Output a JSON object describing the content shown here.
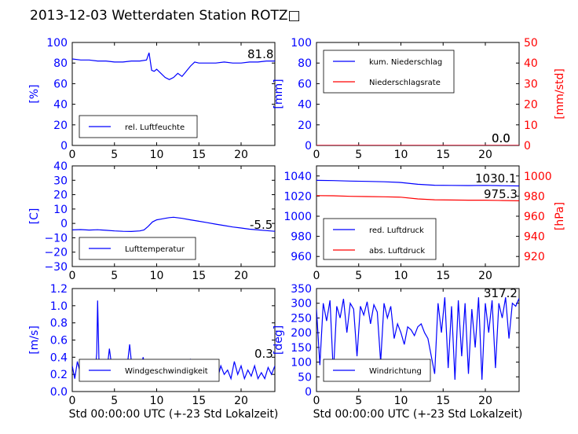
{
  "figure": {
    "title": "2013-12-03 Wetterdaten Station ROTZ□",
    "xlabel": "Std 00:00:00 UTC (+-23 Std Lokalzeit)"
  },
  "colors": {
    "left_axis": "#0000ff",
    "right_axis": "#ff0000",
    "line_primary": "#0000ff",
    "line_secondary": "#ff0000",
    "line_light": "#8080ff"
  },
  "chart_data": [
    {
      "id": "humidity",
      "type": "line",
      "ylabel": "[%]",
      "xlim": [
        0,
        24
      ],
      "ylim": [
        0,
        100
      ],
      "xticks": [
        "0",
        "5",
        "10",
        "15",
        "20"
      ],
      "yticks": [
        "0",
        "20",
        "40",
        "60",
        "80",
        "100"
      ],
      "legend": [
        "rel. Luftfeuchte"
      ],
      "legend_position": "lower-left",
      "current_labels": [
        "81.8"
      ],
      "series": [
        {
          "name": "rel. Luftfeuchte",
          "axis": "left",
          "color": "#0000ff",
          "x": [
            0,
            1,
            2,
            3,
            4,
            5,
            6,
            7,
            8,
            8.8,
            9.1,
            9.4,
            9.7,
            10,
            10.5,
            11,
            11.5,
            12,
            12.5,
            13,
            13.5,
            14,
            14.5,
            15,
            16,
            17,
            18,
            19,
            20,
            21,
            22,
            23,
            24
          ],
          "y": [
            84,
            83,
            83,
            82,
            82,
            81,
            81,
            82,
            82,
            83,
            90,
            73,
            72,
            74,
            70,
            66,
            64,
            66,
            70,
            67,
            72,
            77,
            81,
            80,
            80,
            80,
            81,
            80,
            80,
            81,
            81,
            82,
            82
          ]
        }
      ]
    },
    {
      "id": "precipitation",
      "type": "line",
      "ylabel": "[mm]",
      "ylabel_right": "[mm/std]",
      "xlim": [
        0,
        24
      ],
      "ylim": [
        0,
        100
      ],
      "ylim_right": [
        0,
        50
      ],
      "xticks": [
        "0",
        "5",
        "10",
        "15",
        "20"
      ],
      "yticks": [
        "0",
        "20",
        "40",
        "60",
        "80",
        "100"
      ],
      "yticks_right": [
        "0",
        "10",
        "20",
        "30",
        "40",
        "50"
      ],
      "legend": [
        "kum. Niederschlag",
        "Niederschlagsrate"
      ],
      "legend_position": "upper-left",
      "current_labels": [
        "0.0",
        "0.0"
      ],
      "series": [
        {
          "name": "kum. Niederschlag",
          "axis": "left",
          "color": "#0000ff",
          "x": [
            0,
            24
          ],
          "y": [
            0,
            0
          ]
        },
        {
          "name": "Niederschlagsrate",
          "axis": "right",
          "color": "#ff0000",
          "x": [
            0,
            24
          ],
          "y": [
            0,
            0
          ]
        }
      ]
    },
    {
      "id": "temperature",
      "type": "line",
      "ylabel": "[C]",
      "xlim": [
        0,
        24
      ],
      "ylim": [
        -30,
        40
      ],
      "xticks": [
        "0",
        "5",
        "10",
        "15",
        "20"
      ],
      "yticks": [
        "−30",
        "−20",
        "−10",
        "0",
        "10",
        "20",
        "30",
        "40"
      ],
      "legend": [
        "Lufttemperatur"
      ],
      "legend_position": "lower-left",
      "current_labels": [
        "-5.5"
      ],
      "series": [
        {
          "name": "Lufttemperatur",
          "axis": "left",
          "color": "#0000ff",
          "x": [
            0,
            1,
            2,
            3,
            4,
            5,
            6,
            7,
            8,
            8.5,
            9,
            9.5,
            10,
            10.5,
            11,
            11.5,
            12,
            13,
            14,
            15,
            16,
            17,
            18,
            19,
            20,
            21,
            22,
            23,
            24
          ],
          "y": [
            -4.5,
            -4.3,
            -4.6,
            -4.4,
            -4.8,
            -5.2,
            -5.5,
            -5.6,
            -5.2,
            -4.5,
            -2,
            1,
            2.5,
            3,
            3.5,
            4,
            4.3,
            3.5,
            2.5,
            1.5,
            0.5,
            -0.5,
            -1.5,
            -2.5,
            -3.2,
            -4,
            -4.5,
            -5,
            -5.5
          ]
        }
      ]
    },
    {
      "id": "pressure",
      "type": "line",
      "ylabel_right": "[hPa]",
      "xlim": [
        0,
        24
      ],
      "ylim": [
        950,
        1050
      ],
      "ylim_right": [
        910,
        1010
      ],
      "xticks": [
        "0",
        "5",
        "10",
        "15",
        "20"
      ],
      "yticks": [
        "960",
        "980",
        "1000",
        "1020",
        "1040"
      ],
      "yticks_right": [
        "920",
        "940",
        "960",
        "980",
        "1000"
      ],
      "legend": [
        "red. Luftdruck",
        "abs. Luftdruck"
      ],
      "legend_position": "lower-left",
      "current_labels": [
        "1030.1",
        "975.3"
      ],
      "series": [
        {
          "name": "red. Luftdruck",
          "axis": "left",
          "color": "#0000ff",
          "x": [
            0,
            2,
            4,
            6,
            8,
            10,
            12,
            14,
            16,
            18,
            20,
            22,
            24
          ],
          "y": [
            1035.6,
            1035.4,
            1034.9,
            1034.6,
            1034.2,
            1033.5,
            1031.7,
            1030.8,
            1030.6,
            1030.5,
            1030.6,
            1030.3,
            1030.1
          ]
        },
        {
          "name": "abs. Luftdruck",
          "axis": "right",
          "color": "#ff0000",
          "x": [
            0,
            2,
            4,
            6,
            8,
            10,
            12,
            14,
            16,
            18,
            20,
            22,
            24
          ],
          "y": [
            980.5,
            980.3,
            979.8,
            979.5,
            979.3,
            978.9,
            977.2,
            976.3,
            976.1,
            975.9,
            975.9,
            975.6,
            975.3
          ]
        }
      ]
    },
    {
      "id": "windspeed",
      "type": "line",
      "ylabel": "[m/s]",
      "xlim": [
        0,
        24
      ],
      "ylim": [
        0,
        1.2
      ],
      "xticks": [
        "0",
        "5",
        "10",
        "15",
        "20"
      ],
      "yticks": [
        "0.0",
        "0.2",
        "0.4",
        "0.6",
        "0.8",
        "1.0",
        "1.2"
      ],
      "legend": [
        "Windgeschwindigkeit"
      ],
      "legend_position": "lower-left",
      "current_labels": [
        "0.3"
      ],
      "series": [
        {
          "name": "Windgeschwindigkeit",
          "axis": "left",
          "color": "#0000ff",
          "x": [
            0,
            0.3,
            0.6,
            1,
            1.4,
            1.8,
            2.2,
            2.6,
            2.9,
            3.0,
            3.2,
            3.6,
            4,
            4.4,
            4.8,
            5.2,
            5.6,
            6,
            6.4,
            6.8,
            7.2,
            7.6,
            8,
            8.4,
            8.8,
            9.2,
            9.6,
            10,
            10.4,
            10.8,
            11.2,
            11.6,
            12,
            12.4,
            12.8,
            13.2,
            13.6,
            14,
            14.4,
            14.8,
            15.2,
            15.6,
            16,
            16.4,
            16.8,
            17.2,
            17.6,
            18,
            18.4,
            18.8,
            19.2,
            19.6,
            20,
            20.4,
            20.8,
            21.2,
            21.6,
            22,
            22.4,
            22.8,
            23.2,
            23.6,
            24
          ],
          "y": [
            0.3,
            0.15,
            0.35,
            0.2,
            0.3,
            0.15,
            0.28,
            0.12,
            0.45,
            1.06,
            0.2,
            0.32,
            0.15,
            0.5,
            0.2,
            0.3,
            0.15,
            0.35,
            0.2,
            0.55,
            0.15,
            0.3,
            0.2,
            0.4,
            0.15,
            0.32,
            0.18,
            0.3,
            0.15,
            0.35,
            0.12,
            0.28,
            0.2,
            0.33,
            0.15,
            0.3,
            0.18,
            0.38,
            0.15,
            0.25,
            0.3,
            0.15,
            0.32,
            0.2,
            0.28,
            0.15,
            0.3,
            0.2,
            0.25,
            0.15,
            0.35,
            0.2,
            0.3,
            0.15,
            0.25,
            0.18,
            0.3,
            0.15,
            0.22,
            0.15,
            0.28,
            0.2,
            0.3
          ]
        }
      ]
    },
    {
      "id": "winddirection",
      "type": "line",
      "ylabel": "[deg]",
      "xlim": [
        0,
        24
      ],
      "ylim": [
        0,
        350
      ],
      "xticks": [
        "0",
        "5",
        "10",
        "15",
        "20"
      ],
      "yticks": [
        "0",
        "50",
        "100",
        "150",
        "200",
        "250",
        "300",
        "350"
      ],
      "legend": [
        "Windrichtung"
      ],
      "legend_position": "lower-left",
      "current_labels": [
        "317.2"
      ],
      "series": [
        {
          "name": "Windrichtung",
          "axis": "left",
          "color": "#0000ff",
          "x": [
            0,
            0.4,
            0.8,
            1.2,
            1.6,
            2,
            2.4,
            2.8,
            3.2,
            3.6,
            4,
            4.4,
            4.8,
            5.2,
            5.6,
            6,
            6.4,
            6.8,
            7.2,
            7.6,
            8,
            8.4,
            8.8,
            9.2,
            9.6,
            10,
            10.4,
            10.8,
            11.2,
            11.6,
            12,
            12.4,
            12.8,
            13.2,
            13.6,
            14,
            14.4,
            14.8,
            15.2,
            15.6,
            16,
            16.4,
            16.8,
            17.2,
            17.6,
            18,
            18.4,
            18.8,
            19.2,
            19.6,
            20,
            20.4,
            20.8,
            21.2,
            21.6,
            22,
            22.4,
            22.8,
            23.2,
            23.6,
            24
          ],
          "y": [
            280,
            90,
            300,
            240,
            310,
            60,
            290,
            250,
            315,
            200,
            300,
            280,
            120,
            290,
            260,
            305,
            230,
            295,
            270,
            100,
            300,
            250,
            290,
            180,
            230,
            200,
            160,
            220,
            210,
            190,
            220,
            230,
            200,
            180,
            120,
            60,
            300,
            200,
            320,
            80,
            290,
            40,
            310,
            120,
            300,
            60,
            280,
            150,
            320,
            40,
            300,
            200,
            310,
            80,
            300,
            250,
            320,
            180,
            300,
            290,
            317
          ]
        }
      ]
    }
  ]
}
